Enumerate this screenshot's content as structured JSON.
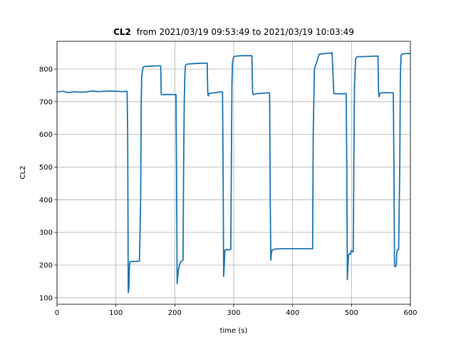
{
  "chart_data": {
    "type": "line",
    "title_bold": "CL2",
    "title_rest": "from 2021/03/19 09:53:49 to 2021/03/19 10:03:49",
    "xlabel": "time (s)",
    "ylabel": "CL2",
    "xlim": [
      0,
      600
    ],
    "ylim": [
      80,
      885
    ],
    "x_ticks": [
      0,
      100,
      200,
      300,
      400,
      500,
      600
    ],
    "y_ticks": [
      100,
      200,
      300,
      400,
      500,
      600,
      700,
      800
    ],
    "grid": true,
    "series_color": "#1f77b4",
    "series": [
      {
        "x": [
          0,
          10,
          20,
          30,
          40,
          50,
          60,
          70,
          80,
          90,
          100,
          110,
          119,
          120,
          121,
          122,
          123,
          124,
          126,
          130,
          135,
          140,
          142,
          143,
          144,
          146,
          148,
          150,
          160,
          170,
          176,
          177,
          178,
          185,
          195,
          202,
          203,
          204,
          206,
          208,
          210,
          213,
          214,
          215,
          216,
          217,
          218,
          220,
          225,
          235,
          245,
          255,
          256,
          257,
          258,
          260,
          270,
          277,
          281,
          282,
          283,
          284,
          285,
          288,
          292,
          295,
          296,
          297,
          298,
          300,
          305,
          315,
          325,
          331,
          332,
          333,
          340,
          350,
          360,
          361,
          362,
          363,
          364,
          365,
          368,
          372,
          380,
          400,
          420,
          433,
          434,
          435,
          437,
          445,
          455,
          465,
          466,
          467,
          470,
          480,
          490,
          491,
          492,
          493,
          494,
          495,
          496,
          498,
          500,
          502,
          503,
          504,
          505,
          507,
          508,
          510,
          520,
          530,
          545,
          546,
          547,
          548,
          550,
          560,
          571,
          572,
          573,
          574,
          576,
          577,
          578,
          580,
          582,
          583,
          584,
          585,
          590,
          600
        ],
        "y": [
          730,
          732,
          728,
          731,
          729,
          730,
          733,
          731,
          732,
          733,
          732,
          731,
          732,
          600,
          116,
          130,
          200,
          210,
          211,
          211,
          211,
          212,
          400,
          700,
          780,
          805,
          808,
          808,
          809,
          810,
          810,
          724,
          722,
          722,
          722,
          722,
          500,
          143,
          185,
          200,
          210,
          213,
          216,
          500,
          700,
          780,
          810,
          815,
          816,
          817,
          818,
          818,
          722,
          718,
          725,
          726,
          728,
          730,
          730,
          500,
          165,
          200,
          245,
          248,
          246,
          248,
          500,
          750,
          820,
          838,
          840,
          841,
          841,
          841,
          730,
          722,
          725,
          726,
          728,
          725,
          400,
          215,
          235,
          245,
          248,
          249,
          250,
          250,
          250,
          250,
          250,
          600,
          800,
          845,
          848,
          849,
          850,
          850,
          725,
          724,
          725,
          725,
          500,
          155,
          200,
          230,
          235,
          233,
          245,
          240,
          242,
          500,
          750,
          830,
          835,
          838,
          838,
          839,
          840,
          726,
          715,
          725,
          727,
          728,
          727,
          500,
          198,
          195,
          200,
          240,
          246,
          247,
          500,
          780,
          840,
          845,
          847,
          848
        ]
      }
    ]
  }
}
